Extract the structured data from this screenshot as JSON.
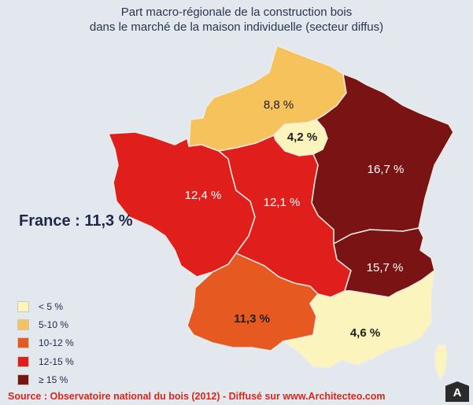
{
  "title": {
    "line1": "Part macro-régionale de la construction bois",
    "line2": "dans le marché de la maison individuelle (secteur diffus)"
  },
  "national": "France : 11,3 %",
  "legend": [
    {
      "label": "< 5 %",
      "color": "#fbf4bd"
    },
    {
      "label": "5-10 %",
      "color": "#f5c25c"
    },
    {
      "label": "10-12 %",
      "color": "#e65a22"
    },
    {
      "label": "12-15 %",
      "color": "#e01f1c"
    },
    {
      "label": "≥ 15 %",
      "color": "#7a1313"
    }
  ],
  "regions": [
    {
      "name": "nord",
      "label": "8,8 %",
      "color": "#f5c25c",
      "value": 8.8,
      "text_color": "#1e1e1e"
    },
    {
      "name": "ile-de-france",
      "label": "4,2 %",
      "color": "#fbf4bd",
      "value": 4.2,
      "text_color": "#1e1e1e"
    },
    {
      "name": "est",
      "label": "16,7 %",
      "color": "#7a1313",
      "value": 16.7,
      "text_color": "#ffffff"
    },
    {
      "name": "ouest",
      "label": "12,4 %",
      "color": "#e01f1c",
      "value": 12.4,
      "text_color": "#ffffff"
    },
    {
      "name": "centre",
      "label": "12,1 %",
      "color": "#e01f1c",
      "value": 12.1,
      "text_color": "#ffffff"
    },
    {
      "name": "centre-est",
      "label": "15,7 %",
      "color": "#7a1313",
      "value": 15.7,
      "text_color": "#ffffff"
    },
    {
      "name": "sud-ouest",
      "label": "11,3 %",
      "color": "#e65a22",
      "value": 11.3,
      "text_color": "#1e1e1e"
    },
    {
      "name": "mediterranee",
      "label": "4,6 %",
      "color": "#fbf4bd",
      "value": 4.6,
      "text_color": "#1e1e1e"
    }
  ],
  "source": "Source : Observatoire national du bois (2012) - Diffusé sur www.Architecteo.com",
  "badge": "A"
}
